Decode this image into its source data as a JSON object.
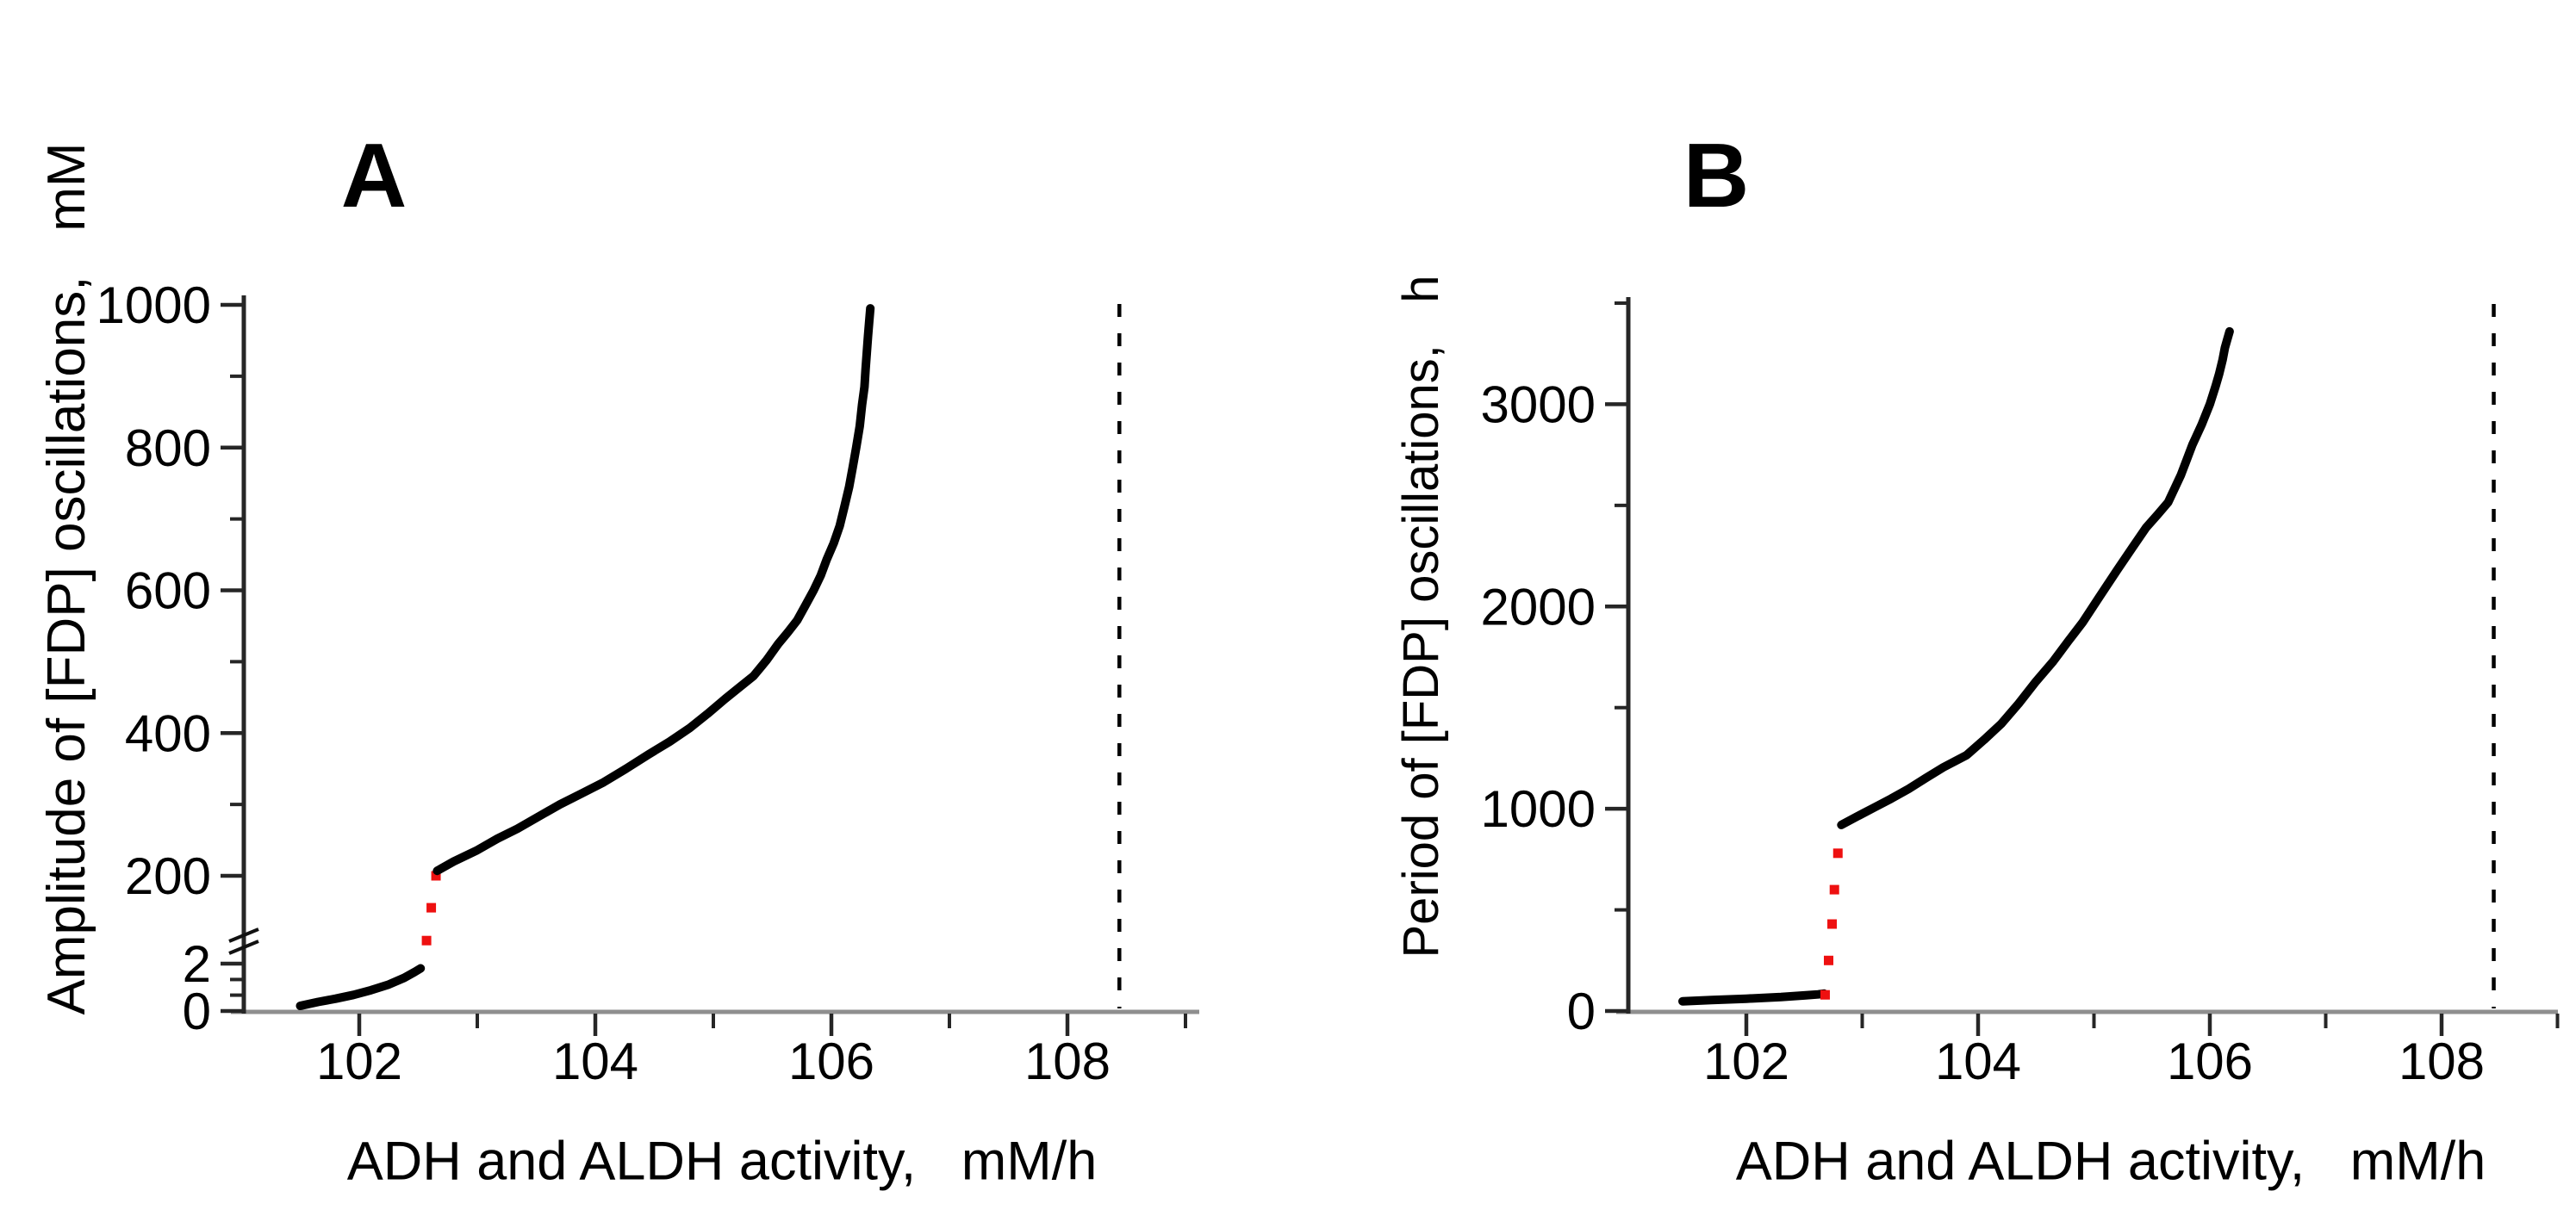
{
  "background": "#ffffff",
  "colors": {
    "curve": "#000000",
    "unstable_branch": "#ee1010",
    "x_axis_line": "#8f8f8f",
    "y_axis_line": "#262626",
    "tick": "#262626",
    "dashed_line": "#000000",
    "text": "#000000"
  },
  "chart_data": [
    {
      "type": "scatter",
      "panel_label": "A",
      "xlabel": "ADH and ALDH activity,   mM/h",
      "ylabel": "Amplitude of [FDP] oscillations,   mM",
      "x_range": [
        101.0,
        109.1
      ],
      "x_ticks": [
        102,
        104,
        106,
        108
      ],
      "x_minor_ticks": [
        103,
        105,
        107,
        109
      ],
      "y_axis_break": true,
      "y_segments": [
        {
          "range": [
            0,
            2
          ],
          "ticks": [
            0,
            2
          ],
          "minor_ticks": [
            0.67,
            1.33
          ]
        },
        {
          "range": [
            200,
            1000
          ],
          "ticks": [
            200,
            400,
            600,
            800,
            1000
          ],
          "minor_ticks": [
            300,
            500,
            700,
            900
          ]
        }
      ],
      "dashed_vline_x": 108.44,
      "series": [
        {
          "name": "stable-lower-branch",
          "color": "#000000",
          "style": "line",
          "points": [
            [
              101.5,
              0.22
            ],
            [
              101.65,
              0.38
            ],
            [
              101.8,
              0.52
            ],
            [
              101.95,
              0.68
            ],
            [
              102.1,
              0.88
            ],
            [
              102.25,
              1.12
            ],
            [
              102.38,
              1.4
            ],
            [
              102.47,
              1.65
            ],
            [
              102.52,
              1.8
            ]
          ]
        },
        {
          "name": "unstable-branch",
          "color": "#ee1010",
          "style": "dots",
          "points": [
            [
              102.57,
              54
            ],
            [
              102.61,
              128
            ],
            [
              102.65,
              200
            ]
          ]
        },
        {
          "name": "stable-upper-branch",
          "color": "#000000",
          "style": "line",
          "points": [
            [
              102.66,
              207
            ],
            [
              102.8,
              220
            ],
            [
              103.0,
              236
            ],
            [
              103.17,
              252
            ],
            [
              103.34,
              266
            ],
            [
              103.52,
              283
            ],
            [
              103.7,
              300
            ],
            [
              103.88,
              315
            ],
            [
              104.07,
              331
            ],
            [
              104.26,
              350
            ],
            [
              104.45,
              370
            ],
            [
              104.63,
              388
            ],
            [
              104.8,
              407
            ],
            [
              104.95,
              427
            ],
            [
              105.1,
              448
            ],
            [
              105.22,
              464
            ],
            [
              105.34,
              480
            ],
            [
              105.45,
              502
            ],
            [
              105.55,
              525
            ],
            [
              105.63,
              541
            ],
            [
              105.71,
              558
            ],
            [
              105.78,
              579
            ],
            [
              105.85,
              600
            ],
            [
              105.91,
              621
            ],
            [
              105.96,
              643
            ],
            [
              106.02,
              666
            ],
            [
              106.07,
              690
            ],
            [
              106.11,
              717
            ],
            [
              106.15,
              745
            ],
            [
              106.18,
              772
            ],
            [
              106.21,
              800
            ],
            [
              106.24,
              830
            ],
            [
              106.26,
              860
            ],
            [
              106.28,
              885
            ],
            [
              106.29,
              910
            ],
            [
              106.3,
              933
            ],
            [
              106.31,
              956
            ],
            [
              106.32,
              975
            ],
            [
              106.33,
              995
            ]
          ]
        }
      ]
    },
    {
      "type": "scatter",
      "panel_label": "B",
      "xlabel": "ADH and ALDH activity,   mM/h",
      "ylabel": "Period of [FDP] oscillations,   h",
      "x_range": [
        101.0,
        109.1
      ],
      "x_ticks": [
        102,
        104,
        106,
        108
      ],
      "x_minor_ticks": [
        103,
        105,
        107,
        109
      ],
      "y_axis_break": false,
      "y_segments": [
        {
          "range": [
            0,
            3500
          ],
          "ticks": [
            0,
            1000,
            2000,
            3000
          ],
          "minor_ticks": [
            500,
            1500,
            2500,
            3500
          ]
        }
      ],
      "dashed_vline_x": 108.45,
      "series": [
        {
          "name": "stable-lower-branch",
          "color": "#000000",
          "style": "line",
          "points": [
            [
              101.45,
              48
            ],
            [
              101.7,
              54
            ],
            [
              102.0,
              61
            ],
            [
              102.3,
              69
            ],
            [
              102.5,
              77
            ],
            [
              102.62,
              82
            ],
            [
              102.67,
              86
            ]
          ]
        },
        {
          "name": "unstable-branch",
          "color": "#ee1010",
          "style": "dots",
          "points": [
            [
              102.68,
              80
            ],
            [
              102.71,
              250
            ],
            [
              102.74,
              430
            ],
            [
              102.76,
              600
            ],
            [
              102.79,
              780
            ]
          ]
        },
        {
          "name": "stable-upper-branch",
          "color": "#000000",
          "style": "line",
          "points": [
            [
              102.82,
              920
            ],
            [
              102.95,
              960
            ],
            [
              103.1,
              1005
            ],
            [
              103.25,
              1050
            ],
            [
              103.4,
              1098
            ],
            [
              103.55,
              1152
            ],
            [
              103.7,
              1205
            ],
            [
              103.9,
              1265
            ],
            [
              104.05,
              1340
            ],
            [
              104.2,
              1420
            ],
            [
              104.35,
              1520
            ],
            [
              104.5,
              1630
            ],
            [
              104.65,
              1730
            ],
            [
              104.78,
              1830
            ],
            [
              104.9,
              1920
            ],
            [
              105.05,
              2050
            ],
            [
              105.2,
              2180
            ],
            [
              105.33,
              2290
            ],
            [
              105.45,
              2390
            ],
            [
              105.55,
              2455
            ],
            [
              105.64,
              2515
            ],
            [
              105.75,
              2650
            ],
            [
              105.85,
              2800
            ],
            [
              105.93,
              2900
            ],
            [
              106.0,
              3000
            ],
            [
              106.05,
              3090
            ],
            [
              106.08,
              3150
            ],
            [
              106.11,
              3220
            ],
            [
              106.13,
              3280
            ],
            [
              106.15,
              3320
            ],
            [
              106.17,
              3360
            ]
          ]
        }
      ]
    }
  ]
}
